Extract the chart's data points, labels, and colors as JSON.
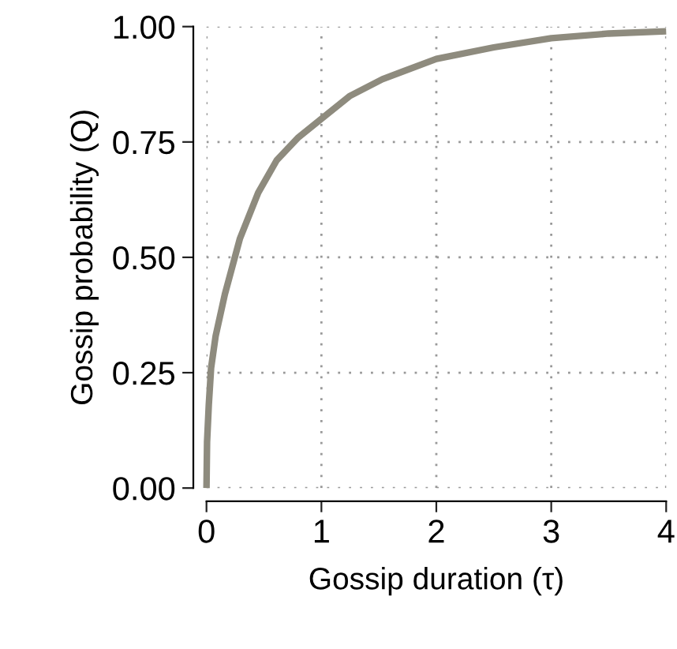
{
  "chart_data": {
    "type": "line",
    "xlabel": "Gossip duration (τ)",
    "ylabel": "Gossip probability (Q)",
    "x": [
      0,
      0.005,
      0.02,
      0.04,
      0.08,
      0.16,
      0.29,
      0.45,
      0.61,
      0.8,
      1.0,
      1.25,
      1.53,
      2.0,
      2.5,
      3.0,
      3.5,
      4.0
    ],
    "series": [
      {
        "color": "#8e8b7e",
        "values": [
          0,
          0.1,
          0.18,
          0.26,
          0.33,
          0.42,
          0.54,
          0.64,
          0.71,
          0.76,
          0.8,
          0.85,
          0.886,
          0.93,
          0.955,
          0.975,
          0.985,
          0.99
        ]
      }
    ],
    "xlim": [
      0,
      4
    ],
    "ylim": [
      0,
      1
    ],
    "xticks": [
      0,
      1,
      2,
      3,
      4
    ],
    "yticks": [
      {
        "value": 0,
        "label": "0.00"
      },
      {
        "value": 0.25,
        "label": "0.25"
      },
      {
        "value": 0.5,
        "label": "0.50"
      },
      {
        "value": 0.75,
        "label": "0.75"
      },
      {
        "value": 1,
        "label": "1.00"
      }
    ],
    "grid": true,
    "line_style": "solid"
  }
}
